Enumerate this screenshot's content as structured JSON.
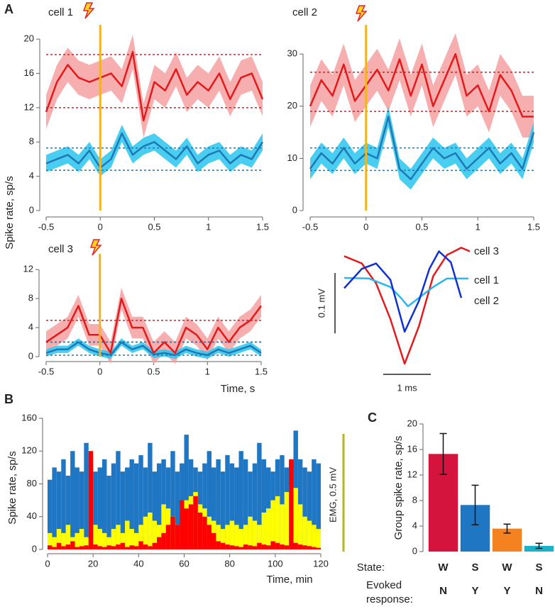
{
  "panel_labels": [
    "A",
    "B",
    "C"
  ],
  "chart_data": [
    {
      "type": "line",
      "title": "cell 1",
      "x": [
        -0.5,
        -0.4,
        -0.3,
        -0.2,
        -0.1,
        0,
        0.1,
        0.2,
        0.3,
        0.4,
        0.5,
        0.6,
        0.7,
        0.8,
        0.9,
        1.0,
        1.1,
        1.2,
        1.3,
        1.4,
        1.5
      ],
      "xlim": [
        -0.5,
        1.5
      ],
      "xticks": [
        -0.5,
        0,
        0.5,
        1,
        1.5
      ],
      "ylim": [
        0,
        22
      ],
      "yticks": [
        0,
        4,
        8,
        12,
        16,
        20
      ],
      "event_x": 0,
      "event_color": "#f5b31b",
      "series": [
        {
          "color": "#e31a1c",
          "band_color": "#f4a0a0",
          "thresholds": [
            18.2,
            12
          ],
          "values": [
            11.5,
            15,
            17,
            15.5,
            15,
            15.5,
            16,
            14.5,
            18.5,
            10.5,
            15,
            14,
            16.5,
            13.5,
            15,
            14,
            16,
            13,
            15.5,
            16,
            13
          ],
          "errors": [
            2,
            2,
            2,
            2,
            2,
            2,
            2,
            2,
            2,
            2,
            2,
            2,
            2,
            2,
            2,
            2,
            2,
            2,
            2,
            2,
            2
          ]
        },
        {
          "color": "#1f78b4",
          "band_color": "#29c5f0",
          "thresholds": [
            7.3,
            4.7
          ],
          "values": [
            5.5,
            6,
            6.5,
            5.5,
            7,
            5,
            6,
            9,
            6.5,
            7.5,
            8,
            7,
            6,
            7.5,
            5.5,
            6.5,
            7,
            5.5,
            6.5,
            6,
            8
          ],
          "errors": [
            1,
            1,
            1,
            1,
            1,
            1,
            1,
            1,
            1,
            1,
            1,
            1,
            1,
            1,
            1,
            1,
            1,
            1,
            1,
            1,
            1
          ]
        }
      ]
    },
    {
      "type": "line",
      "title": "cell 2",
      "x": [
        -0.5,
        -0.4,
        -0.3,
        -0.2,
        -0.1,
        0,
        0.1,
        0.2,
        0.3,
        0.4,
        0.5,
        0.6,
        0.7,
        0.8,
        0.9,
        1.0,
        1.1,
        1.2,
        1.3,
        1.4,
        1.5
      ],
      "xlim": [
        -0.5,
        1.5
      ],
      "xticks": [
        -0.5,
        0,
        0.5,
        1,
        1.5
      ],
      "ylim": [
        0,
        36
      ],
      "yticks": [
        0,
        10,
        20,
        30
      ],
      "event_x": 0,
      "event_color": "#f5b31b",
      "series": [
        {
          "color": "#e31a1c",
          "band_color": "#f4a0a0",
          "thresholds": [
            26.5,
            19
          ],
          "values": [
            20,
            25,
            22,
            28,
            21,
            24,
            27,
            23,
            29,
            22,
            28,
            20,
            25,
            30,
            22,
            24,
            19,
            26,
            23,
            18,
            18
          ],
          "errors": [
            4,
            4,
            4,
            4,
            4,
            4,
            4,
            4,
            4,
            4,
            4,
            4,
            4,
            4,
            4,
            4,
            4,
            4,
            4,
            4,
            4
          ]
        },
        {
          "color": "#1f78b4",
          "band_color": "#29c5f0",
          "thresholds": [
            12,
            7.7
          ],
          "values": [
            8,
            11,
            9,
            12,
            9,
            11,
            10,
            18,
            8,
            6,
            9,
            12,
            10,
            11,
            8,
            10,
            12,
            9,
            11,
            8,
            15
          ],
          "errors": [
            2,
            2,
            2,
            2,
            2,
            2,
            2,
            2,
            2,
            2,
            2,
            2,
            2,
            2,
            2,
            2,
            2,
            2,
            2,
            2,
            2
          ]
        }
      ]
    },
    {
      "type": "line",
      "title": "cell 3",
      "xlabel": "Time, s",
      "ylabel": "Spike rate, sp/s",
      "x": [
        -0.5,
        -0.4,
        -0.3,
        -0.2,
        -0.1,
        0,
        0.1,
        0.2,
        0.3,
        0.4,
        0.5,
        0.6,
        0.7,
        0.8,
        0.9,
        1.0,
        1.1,
        1.2,
        1.3,
        1.4,
        1.5
      ],
      "xlim": [
        -0.5,
        1.5
      ],
      "xticks": [
        -0.5,
        0,
        0.5,
        1,
        1.5
      ],
      "ylim": [
        0,
        13
      ],
      "yticks": [
        0,
        4,
        8,
        12
      ],
      "event_x": 0,
      "event_color": "#f5b31b",
      "series": [
        {
          "color": "#e31a1c",
          "band_color": "#f4a0a0",
          "thresholds": [
            5,
            2
          ],
          "values": [
            2,
            3,
            4,
            7,
            3,
            3,
            0.5,
            8,
            4,
            4,
            0.5,
            2,
            0.5,
            4,
            3,
            1,
            4,
            2,
            4,
            5,
            7
          ],
          "errors": [
            1.5,
            1.5,
            1.5,
            1.5,
            1.5,
            1.5,
            1.5,
            1.5,
            1.5,
            1.5,
            1.5,
            1.5,
            1.5,
            1.5,
            1.5,
            1.5,
            1.5,
            1.5,
            1.5,
            1.5,
            1.5
          ]
        },
        {
          "color": "#1f78b4",
          "band_color": "#29c5f0",
          "thresholds": [
            2,
            0.2
          ],
          "values": [
            0.5,
            1,
            1,
            2,
            1,
            0.5,
            0.2,
            2,
            1,
            1.5,
            0.3,
            0.5,
            0.2,
            1,
            0.5,
            0.2,
            1,
            0.5,
            1,
            1.5,
            0.5
          ],
          "errors": [
            0.5,
            0.5,
            0.5,
            0.5,
            0.5,
            0.5,
            0.5,
            0.5,
            0.5,
            0.5,
            0.5,
            0.5,
            0.5,
            0.5,
            0.5,
            0.5,
            0.5,
            0.5,
            0.5,
            0.5,
            0.5
          ]
        }
      ]
    },
    {
      "type": "line",
      "xlim": [
        0,
        2.61
      ],
      "ylim": [
        -0.14,
        0.07
      ],
      "scalebar_y": {
        "value": 0.1,
        "label": "0.1 mV"
      },
      "scalebar_x": {
        "value": 1,
        "label": "1 ms"
      },
      "series": [
        {
          "name": "cell 3",
          "color": "#e31a1c",
          "x": [
            0,
            0.37,
            0.67,
            0.97,
            1.27,
            1.57,
            1.87,
            2.16,
            2.46,
            2.64
          ],
          "values": [
            0.045,
            0.033,
            0,
            -0.059,
            -0.133,
            -0.071,
            0.012,
            0.047,
            0.059,
            0.053
          ]
        },
        {
          "name": "cell 1",
          "color": "#29b6e8",
          "x": [
            0,
            0.52,
            0.97,
            1.19,
            1.34,
            1.57,
            1.87,
            2.16,
            2.61
          ],
          "values": [
            0.009,
            0.008,
            -0.006,
            -0.024,
            -0.038,
            -0.024,
            -0.006,
            0.008,
            0.008
          ]
        },
        {
          "name": "cell 2",
          "color": "#1030d0",
          "x": [
            0,
            0.37,
            0.67,
            0.97,
            1.27,
            1.57,
            1.79,
            1.99,
            2.24,
            2.46
          ],
          "values": [
            -0.008,
            0.024,
            0.033,
            0.006,
            -0.08,
            -0.029,
            0.024,
            0.053,
            0.035,
            -0.024
          ]
        }
      ]
    },
    {
      "type": "histogram",
      "xlabel": "Time, min",
      "ylabel": "Spike rate, sp/s",
      "emg_label": "EMG, 0.5 mV",
      "bins": [
        0,
        2,
        4,
        6,
        8,
        10,
        12,
        14,
        16,
        18,
        20,
        22,
        24,
        26,
        28,
        30,
        32,
        34,
        36,
        38,
        40,
        42,
        44,
        46,
        48,
        50,
        52,
        54,
        56,
        58,
        60,
        62,
        64,
        66,
        68,
        70,
        72,
        74,
        76,
        78,
        80,
        82,
        84,
        86,
        88,
        90,
        92,
        94,
        96,
        98,
        100,
        102,
        104,
        106,
        108,
        110,
        112,
        114,
        116,
        118,
        120
      ],
      "xlim": [
        0,
        120
      ],
      "xticks": [
        0,
        20,
        40,
        60,
        80,
        100,
        120
      ],
      "ylim": [
        0,
        160
      ],
      "yticks": [
        0,
        40,
        80,
        120,
        160
      ],
      "series": [
        {
          "color": "#1f77c4",
          "values": [
            85,
            100,
            95,
            110,
            90,
            120,
            100,
            95,
            130,
            105,
            95,
            100,
            110,
            90,
            105,
            120,
            95,
            100,
            110,
            105,
            115,
            100,
            130,
            95,
            105,
            110,
            100,
            120,
            95,
            105,
            140,
            110,
            100,
            95,
            105,
            120,
            100,
            110,
            95,
            115,
            105,
            100,
            120,
            110,
            95,
            105,
            130,
            110,
            100,
            95,
            110,
            115,
            100,
            105,
            145,
            110,
            100,
            95,
            110,
            105
          ]
        },
        {
          "color": "#ffff00",
          "values": [
            20,
            15,
            25,
            20,
            30,
            15,
            20,
            25,
            15,
            20,
            30,
            25,
            20,
            15,
            25,
            30,
            20,
            35,
            25,
            20,
            30,
            40,
            45,
            35,
            30,
            55,
            50,
            40,
            30,
            55,
            60,
            65,
            70,
            55,
            50,
            40,
            35,
            30,
            25,
            30,
            35,
            30,
            25,
            30,
            40,
            35,
            30,
            45,
            50,
            60,
            65,
            55,
            70,
            80,
            75,
            55,
            40,
            35,
            30,
            25
          ]
        },
        {
          "color": "#ff0000",
          "values": [
            5,
            3,
            8,
            4,
            6,
            10,
            3,
            4,
            5,
            120,
            6,
            4,
            3,
            5,
            4,
            6,
            8,
            3,
            5,
            4,
            10,
            6,
            4,
            8,
            15,
            20,
            30,
            40,
            30,
            60,
            50,
            55,
            65,
            45,
            40,
            30,
            20,
            10,
            8,
            6,
            5,
            4,
            3,
            6,
            5,
            4,
            8,
            6,
            5,
            10,
            8,
            6,
            5,
            110,
            8,
            6,
            5,
            4,
            3,
            2
          ]
        }
      ]
    },
    {
      "type": "bar",
      "ylabel": "Group spike rate, sp/s",
      "categories": [
        "W",
        "S",
        "W",
        "S"
      ],
      "row_label": "State:",
      "evoked": [
        "N",
        "Y",
        "Y",
        "N"
      ],
      "evoked_label": [
        "Evoked",
        "response:"
      ],
      "values": [
        15.3,
        7.3,
        3.6,
        0.9
      ],
      "errors": [
        3.2,
        3.1,
        0.7,
        0.4
      ],
      "colors": [
        "#d4143c",
        "#1f77c4",
        "#f58220",
        "#1ab3c8"
      ],
      "ylim": [
        0,
        20
      ],
      "yticks": [
        0,
        4,
        8,
        12,
        16,
        20
      ]
    }
  ]
}
